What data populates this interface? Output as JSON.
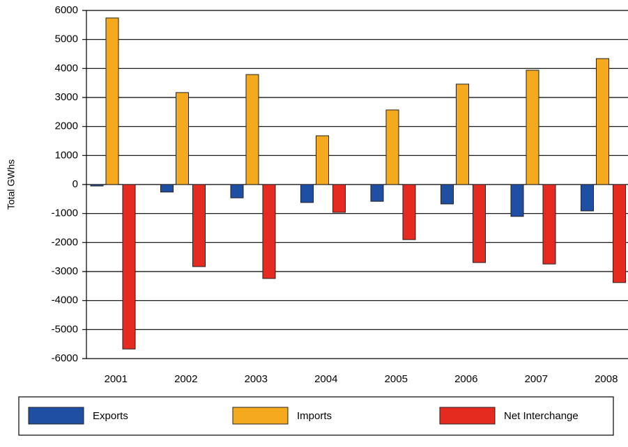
{
  "chart_data": {
    "type": "bar",
    "y_label": "Total GWhs",
    "categories": [
      "2001",
      "2002",
      "2003",
      "2004",
      "2005",
      "2006",
      "2007",
      "2008"
    ],
    "series": [
      {
        "name": "Exports",
        "color": "#1f4fa3",
        "values": [
          -50,
          -260,
          -460,
          -620,
          -580,
          -670,
          -1100,
          -910
        ]
      },
      {
        "name": "Imports",
        "color": "#f5aa1e",
        "values": [
          5740,
          3170,
          3790,
          1680,
          2570,
          3460,
          3940,
          4340
        ]
      },
      {
        "name": "Net Interchange",
        "color": "#e52a20",
        "values": [
          -5670,
          -2830,
          -3240,
          -960,
          -1900,
          -2690,
          -2740,
          -3380
        ]
      }
    ],
    "ylim": [
      -6000,
      6000
    ],
    "yticks": [
      -6000,
      -5000,
      -4000,
      -3000,
      -2000,
      -1000,
      0,
      1000,
      2000,
      3000,
      4000,
      5000,
      6000
    ],
    "grid": true,
    "legend": "bottom"
  }
}
